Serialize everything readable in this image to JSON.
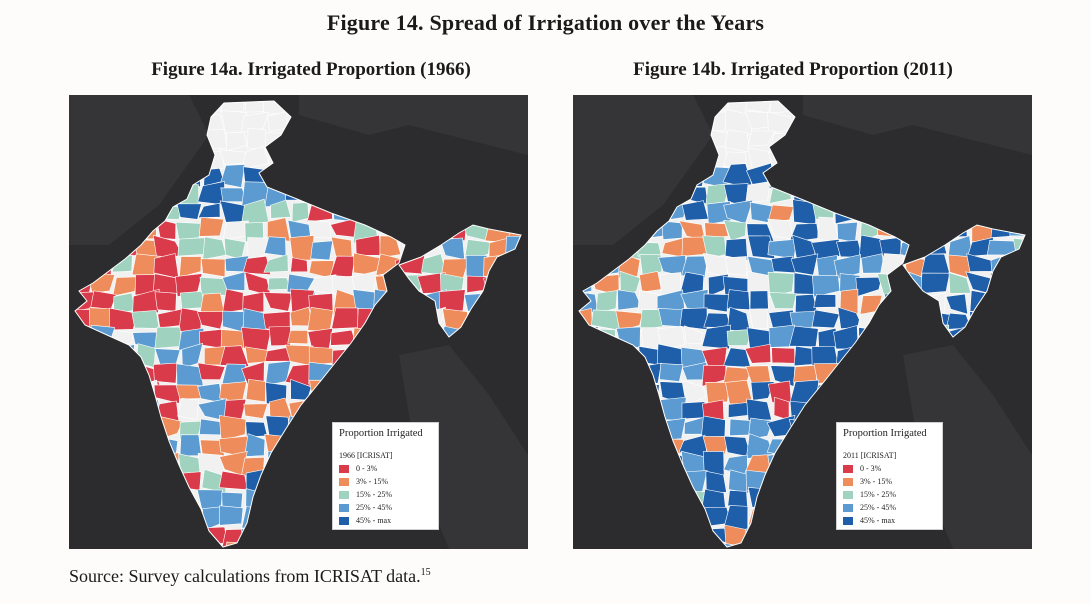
{
  "figure_title": "Figure 14. Spread of Irrigation over the Years",
  "maps": [
    {
      "title": "Figure 14a. Irrigated Proportion (1966)",
      "legend_title": "Proportion Irrigated",
      "legend_subtitle": "1966 [ICRISAT]",
      "dominant_classes": [
        "0 - 3%",
        "3% - 15%"
      ]
    },
    {
      "title": "Figure 14b. Irrigated Proportion (2011)",
      "legend_title": "Proportion Irrigated",
      "legend_subtitle": "2011 [ICRISAT]",
      "dominant_classes": [
        "45% - max",
        "25% - 45%"
      ]
    }
  ],
  "legend_classes": [
    {
      "label": "0 - 3%",
      "color": "#d93b4a"
    },
    {
      "label": "3% - 15%",
      "color": "#ee8d5b"
    },
    {
      "label": "15% - 25%",
      "color": "#9fd3c0"
    },
    {
      "label": "25% - 45%",
      "color": "#5b9bd1"
    },
    {
      "label": "45% - max",
      "color": "#1f5ea8"
    }
  ],
  "no_data_color": "#f1f1f1",
  "source": {
    "text": "Source: Survey calculations from ICRISAT data.",
    "footnote": "15"
  }
}
